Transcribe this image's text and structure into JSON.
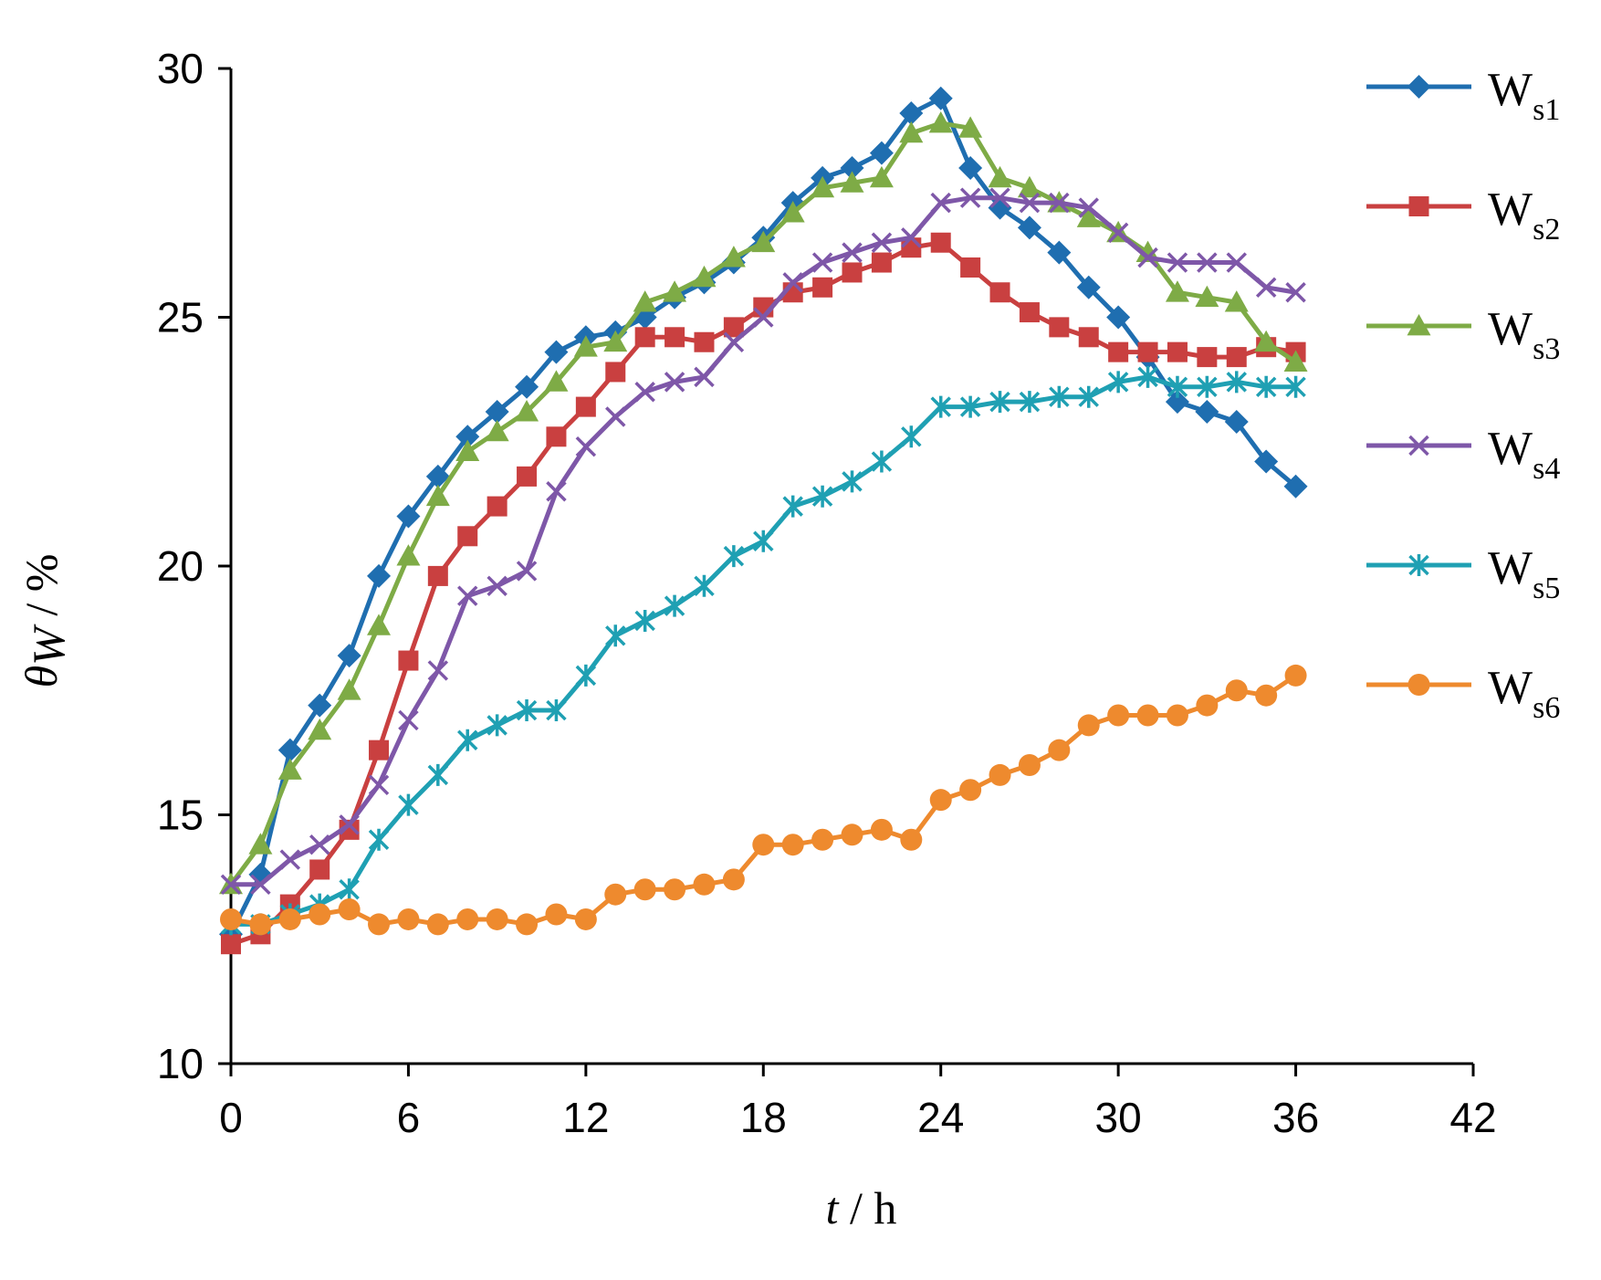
{
  "chart_data": {
    "type": "line",
    "title": "",
    "xlabel": {
      "var": "t",
      "unit": "h",
      "sep": " / "
    },
    "ylabel": {
      "var": "θ",
      "sub": "W",
      "sep": " / ",
      "unit": "%"
    },
    "xlim": [
      0,
      42
    ],
    "ylim": [
      10,
      30
    ],
    "xticks": [
      0,
      6,
      12,
      18,
      24,
      30,
      36,
      42
    ],
    "yticks": [
      10,
      15,
      20,
      25,
      30
    ],
    "grid": false,
    "legend_position": "right",
    "x": [
      0,
      1,
      2,
      3,
      4,
      5,
      6,
      7,
      8,
      9,
      10,
      11,
      12,
      13,
      14,
      15,
      16,
      17,
      18,
      19,
      20,
      21,
      22,
      23,
      24,
      25,
      26,
      27,
      28,
      29,
      30,
      31,
      32,
      33,
      34,
      35,
      36
    ],
    "series": [
      {
        "name": "W",
        "sub": "s1",
        "color": "#1F6EB0",
        "marker": "diamond",
        "values": [
          12.6,
          13.8,
          16.3,
          17.2,
          18.2,
          19.8,
          21.0,
          21.8,
          22.6,
          23.1,
          23.6,
          24.3,
          24.6,
          24.7,
          25.0,
          25.4,
          25.7,
          26.1,
          26.6,
          27.3,
          27.8,
          28.0,
          28.3,
          29.1,
          29.4,
          28.0,
          27.2,
          26.8,
          26.3,
          25.6,
          25.0,
          24.2,
          23.3,
          23.1,
          22.9,
          22.1,
          21.6
        ]
      },
      {
        "name": "W",
        "sub": "s2",
        "color": "#C94040",
        "marker": "square",
        "values": [
          12.4,
          12.6,
          13.2,
          13.9,
          14.7,
          16.3,
          18.1,
          19.8,
          20.6,
          21.2,
          21.8,
          22.6,
          23.2,
          23.9,
          24.6,
          24.6,
          24.5,
          24.8,
          25.2,
          25.5,
          25.6,
          25.9,
          26.1,
          26.4,
          26.5,
          26.0,
          25.5,
          25.1,
          24.8,
          24.6,
          24.3,
          24.3,
          24.3,
          24.2,
          24.2,
          24.4,
          24.3
        ]
      },
      {
        "name": "W",
        "sub": "s3",
        "color": "#7EAB46",
        "marker": "triangle",
        "values": [
          13.6,
          14.4,
          15.9,
          16.7,
          17.5,
          18.8,
          20.2,
          21.4,
          22.3,
          22.7,
          23.1,
          23.7,
          24.4,
          24.5,
          25.3,
          25.5,
          25.8,
          26.2,
          26.5,
          27.1,
          27.6,
          27.7,
          27.8,
          28.7,
          28.9,
          28.8,
          27.8,
          27.6,
          27.3,
          27.0,
          26.7,
          26.3,
          25.5,
          25.4,
          25.3,
          24.5,
          24.1
        ]
      },
      {
        "name": "W",
        "sub": "s4",
        "color": "#7E57A8",
        "marker": "x",
        "values": [
          13.6,
          13.6,
          14.1,
          14.4,
          14.8,
          15.6,
          16.9,
          17.9,
          19.4,
          19.6,
          19.9,
          21.5,
          22.4,
          23.0,
          23.5,
          23.7,
          23.8,
          24.5,
          25.0,
          25.7,
          26.1,
          26.3,
          26.5,
          26.6,
          27.3,
          27.4,
          27.4,
          27.3,
          27.3,
          27.2,
          26.7,
          26.2,
          26.1,
          26.1,
          26.1,
          25.6,
          25.5
        ]
      },
      {
        "name": "W",
        "sub": "s5",
        "color": "#1FA0B3",
        "marker": "star",
        "values": [
          12.8,
          12.8,
          13.0,
          13.2,
          13.5,
          14.5,
          15.2,
          15.8,
          16.5,
          16.8,
          17.1,
          17.1,
          17.8,
          18.6,
          18.9,
          19.2,
          19.6,
          20.2,
          20.5,
          21.2,
          21.4,
          21.7,
          22.1,
          22.6,
          23.2,
          23.2,
          23.3,
          23.3,
          23.4,
          23.4,
          23.7,
          23.8,
          23.6,
          23.6,
          23.7,
          23.6,
          23.6
        ]
      },
      {
        "name": "W",
        "sub": "s6",
        "color": "#EE8A2E",
        "marker": "circle",
        "values": [
          12.9,
          12.8,
          12.9,
          13.0,
          13.1,
          12.8,
          12.9,
          12.8,
          12.9,
          12.9,
          12.8,
          13.0,
          12.9,
          13.4,
          13.5,
          13.5,
          13.6,
          13.7,
          14.4,
          14.4,
          14.5,
          14.6,
          14.7,
          14.5,
          15.3,
          15.5,
          15.8,
          16.0,
          16.3,
          16.8,
          17.0,
          17.0,
          17.0,
          17.2,
          17.5,
          17.4,
          17.8
        ]
      }
    ]
  }
}
